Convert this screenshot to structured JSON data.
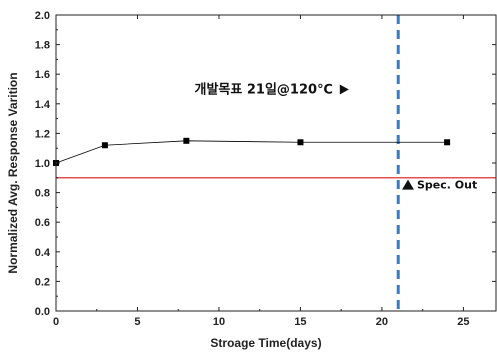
{
  "chart_data": {
    "type": "line",
    "xlabel": "Stroage Time(days)",
    "ylabel": "Normalized Avg. Response Varition",
    "xlim": [
      0,
      27
    ],
    "ylim": [
      0.0,
      2.0
    ],
    "x_ticks": [
      0,
      5,
      10,
      15,
      20,
      25
    ],
    "y_ticks": [
      0.0,
      0.2,
      0.4,
      0.6,
      0.8,
      1.0,
      1.2,
      1.4,
      1.6,
      1.8,
      2.0
    ],
    "series": [
      {
        "x": [
          0,
          3,
          8,
          15,
          24
        ],
        "y": [
          1.0,
          1.12,
          1.15,
          1.14,
          1.14
        ],
        "color": "#000000"
      }
    ],
    "reference_lines": [
      {
        "orientation": "horizontal",
        "value": 0.9,
        "color": "#e05050",
        "style": "solid"
      },
      {
        "orientation": "vertical",
        "value": 21,
        "color": "#3a7cc0",
        "style": "dashed"
      }
    ],
    "annotations": [
      {
        "text": "개발목표 21일@120℃",
        "x": 8.5,
        "y": 1.47,
        "marker": "right-triangle"
      },
      {
        "text": "Spec. Out",
        "x": 21.6,
        "y": 0.82,
        "marker": "up-triangle"
      }
    ],
    "grid": false
  }
}
